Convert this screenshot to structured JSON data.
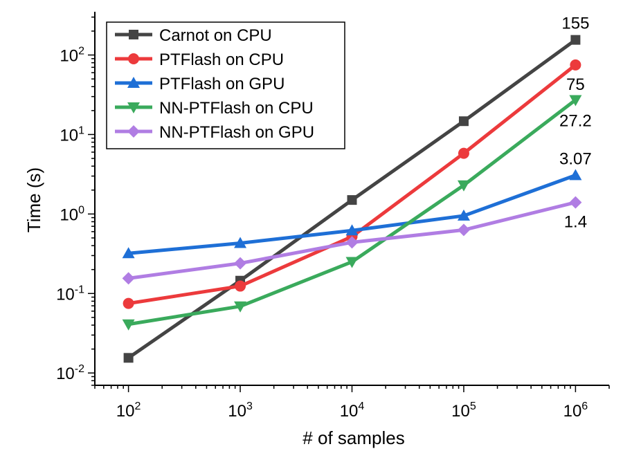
{
  "chart_data": {
    "type": "line",
    "xlabel": "# of samples",
    "ylabel": "Time (s)",
    "x_scale": "log",
    "y_scale": "log",
    "xlim": [
      50,
      2000000
    ],
    "ylim": [
      0.007,
      350
    ],
    "x_ticks": [
      {
        "value": 100,
        "base": "10",
        "exp": "2"
      },
      {
        "value": 1000,
        "base": "10",
        "exp": "3"
      },
      {
        "value": 10000,
        "base": "10",
        "exp": "4"
      },
      {
        "value": 100000,
        "base": "10",
        "exp": "5"
      },
      {
        "value": 1000000,
        "base": "10",
        "exp": "6"
      }
    ],
    "y_ticks": [
      {
        "value": 0.01,
        "base": "10",
        "exp": "-2"
      },
      {
        "value": 0.1,
        "base": "10",
        "exp": "-1"
      },
      {
        "value": 1,
        "base": "10",
        "exp": "0"
      },
      {
        "value": 10,
        "base": "10",
        "exp": "1"
      },
      {
        "value": 100,
        "base": "10",
        "exp": "2"
      }
    ],
    "grid": false,
    "legend_position": "top-left",
    "x": [
      100,
      1000,
      10000,
      100000,
      1000000
    ],
    "series": [
      {
        "name": "Carnot on CPU",
        "color": "#444444",
        "marker": "square",
        "values": [
          0.0155,
          0.145,
          1.5,
          14.7,
          155
        ]
      },
      {
        "name": "PTFlash on CPU",
        "color": "#ec3a3c",
        "marker": "circle",
        "values": [
          0.075,
          0.124,
          0.52,
          5.8,
          75
        ]
      },
      {
        "name": "PTFlash on GPU",
        "color": "#1e6fd6",
        "marker": "triangle-up",
        "values": [
          0.32,
          0.43,
          0.62,
          0.95,
          3.07
        ]
      },
      {
        "name": "NN-PTFlash on CPU",
        "color": "#3aaa5c",
        "marker": "triangle-down",
        "values": [
          0.041,
          0.069,
          0.25,
          2.3,
          27.2
        ]
      },
      {
        "name": "NN-PTFlash on GPU",
        "color": "#b07de3",
        "marker": "diamond",
        "values": [
          0.155,
          0.24,
          0.44,
          0.63,
          1.4
        ]
      }
    ],
    "annotations": [
      {
        "text": "155",
        "series": 0
      },
      {
        "text": "75",
        "series": 1
      },
      {
        "text": "27.2",
        "series": 3
      },
      {
        "text": "3.07",
        "series": 2
      },
      {
        "text": "1.4",
        "series": 4
      }
    ]
  }
}
